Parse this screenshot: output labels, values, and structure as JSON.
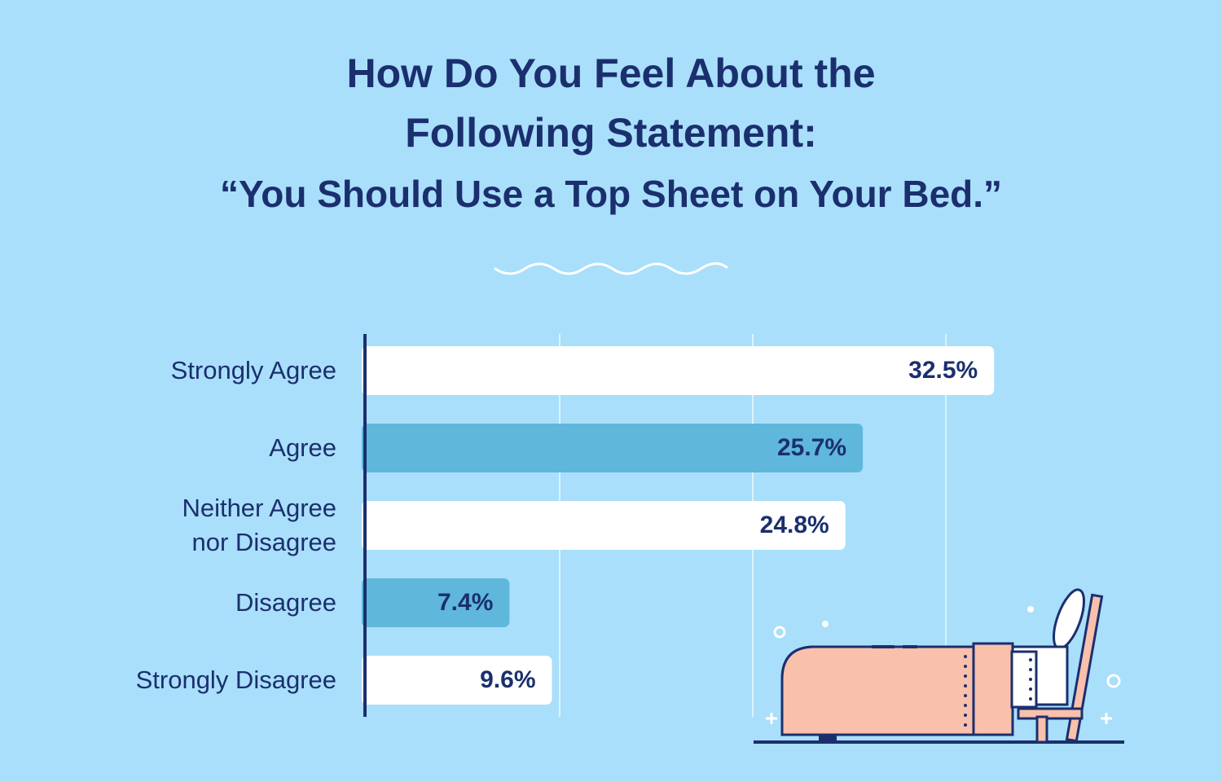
{
  "title_line1": "How Do You Feel About the",
  "title_line2": "Following Statement:",
  "subtitle": "“You Should Use a Top Sheet on Your Bed.”",
  "colors": {
    "background": "#a9dffa",
    "text": "#1b2f6e",
    "bar_white": "#ffffff",
    "bar_blue": "#5fb7dc",
    "bed_pink": "#f9c0ac"
  },
  "chart_data": {
    "type": "bar",
    "orientation": "horizontal",
    "categories": [
      "Strongly Agree",
      "Agree",
      "Neither Agree\nnor Disagree",
      "Disagree",
      "Strongly Disagree"
    ],
    "values": [
      32.5,
      25.7,
      24.8,
      7.4,
      9.6
    ],
    "value_labels": [
      "32.5%",
      "25.7%",
      "24.8%",
      "7.4%",
      "9.6%"
    ],
    "xlim": [
      0,
      40
    ],
    "grid": true,
    "legend": "none"
  }
}
